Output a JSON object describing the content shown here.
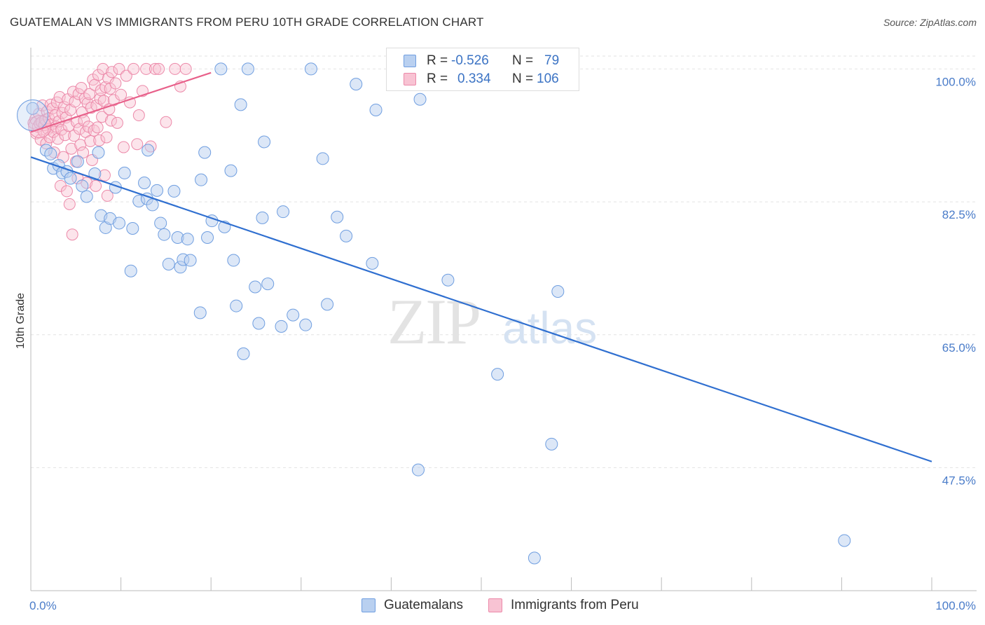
{
  "title": "GUATEMALAN VS IMMIGRANTS FROM PERU 10TH GRADE CORRELATION CHART",
  "source": "Source: ZipAtlas.com",
  "watermark": {
    "zip": "ZIP",
    "atlas": "atlas"
  },
  "colors": {
    "blue_fill": "#b9d0f0",
    "blue_stroke": "#6f9ee0",
    "blue_line": "#2f6fd0",
    "pink_fill": "#f8c3d3",
    "pink_stroke": "#ec89a9",
    "pink_line": "#e8608a",
    "tick_text": "#4a7cc9",
    "grid": "#e2e2e2"
  },
  "legend": {
    "rows": [
      {
        "r_label": "R =",
        "r_value": "-0.526",
        "n_label": "N =",
        "n_value": "79"
      },
      {
        "r_label": "R =",
        "r_value": "0.334",
        "n_label": "N =",
        "n_value": "106"
      }
    ]
  },
  "bottom_legend": {
    "series1": "Guatemalans",
    "series2": "Immigrants from Peru"
  },
  "chart_data": {
    "type": "scatter",
    "title": "GUATEMALAN VS IMMIGRANTS FROM PERU 10TH GRADE CORRELATION CHART",
    "xlabel": "",
    "ylabel": "10th Grade",
    "xlim": [
      0,
      100
    ],
    "ylim": [
      31.3,
      101.7
    ],
    "x_tick_labels": [
      "0.0%",
      "100.0%"
    ],
    "y_ticks": [
      47.5,
      65.0,
      82.5,
      100.0
    ],
    "y_tick_labels": [
      "47.5%",
      "65.0%",
      "82.5%",
      "100.0%"
    ],
    "grid": true,
    "legend_position": "top-center",
    "series": [
      {
        "name": "Guatemalans",
        "color": "#6f9ee0",
        "R": -0.526,
        "N": 79,
        "trend": {
          "x": [
            0,
            100
          ],
          "y": [
            88.4,
            48.3
          ]
        },
        "points": [
          [
            0.2,
            94.8
          ],
          [
            1.7,
            89.3
          ],
          [
            2.2,
            88.8
          ],
          [
            2.5,
            86.9
          ],
          [
            3.1,
            87.3
          ],
          [
            3.5,
            86.3
          ],
          [
            4.0,
            86.5
          ],
          [
            4.4,
            85.6
          ],
          [
            5.2,
            87.8
          ],
          [
            5.7,
            84.6
          ],
          [
            6.2,
            83.2
          ],
          [
            7.1,
            86.2
          ],
          [
            7.5,
            89.0
          ],
          [
            7.8,
            80.7
          ],
          [
            8.3,
            79.1
          ],
          [
            8.8,
            80.3
          ],
          [
            9.4,
            84.4
          ],
          [
            9.8,
            79.7
          ],
          [
            10.4,
            86.3
          ],
          [
            11.1,
            73.4
          ],
          [
            11.3,
            79.0
          ],
          [
            12.0,
            82.6
          ],
          [
            12.6,
            85.0
          ],
          [
            12.9,
            82.9
          ],
          [
            13.0,
            89.3
          ],
          [
            13.5,
            82.1
          ],
          [
            14.0,
            84.0
          ],
          [
            14.4,
            79.7
          ],
          [
            14.8,
            78.2
          ],
          [
            15.3,
            74.3
          ],
          [
            15.9,
            83.9
          ],
          [
            16.3,
            77.8
          ],
          [
            16.6,
            73.9
          ],
          [
            16.9,
            74.9
          ],
          [
            17.4,
            77.6
          ],
          [
            17.7,
            74.8
          ],
          [
            18.8,
            67.9
          ],
          [
            18.9,
            85.4
          ],
          [
            19.3,
            89.0
          ],
          [
            19.6,
            77.8
          ],
          [
            20.1,
            80.0
          ],
          [
            21.1,
            100.0
          ],
          [
            21.5,
            79.2
          ],
          [
            22.2,
            86.6
          ],
          [
            22.5,
            74.8
          ],
          [
            22.8,
            68.8
          ],
          [
            23.3,
            95.3
          ],
          [
            23.6,
            62.5
          ],
          [
            24.1,
            100.0
          ],
          [
            24.9,
            71.3
          ],
          [
            25.3,
            66.5
          ],
          [
            25.7,
            80.4
          ],
          [
            25.9,
            90.4
          ],
          [
            26.3,
            71.7
          ],
          [
            27.8,
            66.1
          ],
          [
            28.0,
            81.2
          ],
          [
            29.1,
            67.6
          ],
          [
            30.5,
            66.3
          ],
          [
            31.1,
            100.0
          ],
          [
            32.9,
            69.0
          ],
          [
            32.4,
            88.2
          ],
          [
            34.0,
            80.5
          ],
          [
            35.0,
            78.0
          ],
          [
            36.1,
            98.0
          ],
          [
            37.9,
            74.4
          ],
          [
            38.3,
            94.6
          ],
          [
            43.2,
            96.0
          ],
          [
            43.0,
            47.2
          ],
          [
            46.3,
            72.2
          ],
          [
            51.8,
            59.8
          ],
          [
            55.9,
            35.6
          ],
          [
            57.8,
            50.6
          ],
          [
            58.5,
            70.7
          ],
          [
            59.1,
            100.0
          ],
          [
            90.3,
            37.9
          ]
        ]
      },
      {
        "name": "Immigrants from Peru",
        "color": "#ec89a9",
        "R": 0.334,
        "N": 106,
        "trend": {
          "x": [
            0,
            20
          ],
          "y": [
            91.7,
            99.5
          ]
        },
        "points": [
          [
            0.3,
            92.9
          ],
          [
            0.5,
            93.4
          ],
          [
            0.6,
            91.5
          ],
          [
            0.8,
            92.4
          ],
          [
            0.9,
            94.1
          ],
          [
            1.0,
            92.8
          ],
          [
            1.1,
            90.7
          ],
          [
            1.2,
            93.0
          ],
          [
            1.3,
            95.2
          ],
          [
            1.4,
            91.8
          ],
          [
            1.5,
            92.6
          ],
          [
            1.6,
            93.3
          ],
          [
            1.7,
            90.2
          ],
          [
            1.8,
            94.4
          ],
          [
            1.9,
            92.1
          ],
          [
            2.0,
            93.5
          ],
          [
            2.1,
            91.0
          ],
          [
            2.2,
            95.3
          ],
          [
            2.3,
            92.7
          ],
          [
            2.4,
            94.8
          ],
          [
            2.5,
            91.7
          ],
          [
            2.6,
            89.0
          ],
          [
            2.7,
            93.9
          ],
          [
            2.8,
            92.4
          ],
          [
            2.9,
            95.6
          ],
          [
            3.0,
            90.8
          ],
          [
            3.1,
            93.1
          ],
          [
            3.2,
            96.3
          ],
          [
            3.3,
            84.6
          ],
          [
            3.4,
            92.0
          ],
          [
            3.5,
            94.2
          ],
          [
            3.6,
            88.4
          ],
          [
            3.7,
            95.0
          ],
          [
            3.8,
            91.3
          ],
          [
            3.9,
            93.6
          ],
          [
            4.0,
            83.9
          ],
          [
            4.1,
            96.0
          ],
          [
            4.2,
            92.5
          ],
          [
            4.3,
            82.2
          ],
          [
            4.4,
            94.6
          ],
          [
            4.5,
            89.5
          ],
          [
            4.6,
            78.2
          ],
          [
            4.7,
            97.0
          ],
          [
            4.8,
            91.2
          ],
          [
            4.9,
            95.7
          ],
          [
            5.0,
            87.8
          ],
          [
            5.1,
            93.0
          ],
          [
            5.2,
            85.6
          ],
          [
            5.3,
            96.7
          ],
          [
            5.4,
            92.1
          ],
          [
            5.5,
            90.0
          ],
          [
            5.6,
            97.5
          ],
          [
            5.7,
            94.3
          ],
          [
            5.8,
            89.0
          ],
          [
            5.9,
            93.2
          ],
          [
            6.0,
            96.1
          ],
          [
            6.1,
            91.7
          ],
          [
            6.2,
            85.0
          ],
          [
            6.3,
            95.5
          ],
          [
            6.4,
            92.4
          ],
          [
            6.5,
            96.7
          ],
          [
            6.6,
            90.5
          ],
          [
            6.7,
            94.9
          ],
          [
            6.8,
            88.0
          ],
          [
            6.9,
            98.6
          ],
          [
            7.0,
            91.9
          ],
          [
            7.1,
            97.9
          ],
          [
            7.2,
            84.6
          ],
          [
            7.3,
            95.2
          ],
          [
            7.4,
            92.3
          ],
          [
            7.5,
            99.2
          ],
          [
            7.6,
            90.6
          ],
          [
            7.7,
            96.1
          ],
          [
            7.8,
            97.2
          ],
          [
            7.9,
            93.7
          ],
          [
            8.0,
            100.0
          ],
          [
            8.1,
            95.8
          ],
          [
            8.2,
            86.0
          ],
          [
            8.3,
            97.6
          ],
          [
            8.4,
            91.0
          ],
          [
            8.5,
            83.3
          ],
          [
            8.6,
            98.8
          ],
          [
            8.7,
            94.7
          ],
          [
            8.8,
            97.4
          ],
          [
            8.9,
            93.2
          ],
          [
            9.0,
            99.6
          ],
          [
            9.2,
            95.9
          ],
          [
            9.4,
            98.1
          ],
          [
            9.6,
            92.9
          ],
          [
            9.8,
            100.0
          ],
          [
            10.0,
            96.6
          ],
          [
            10.3,
            89.7
          ],
          [
            10.6,
            99.1
          ],
          [
            11.0,
            95.6
          ],
          [
            11.4,
            100.0
          ],
          [
            12.0,
            93.9
          ],
          [
            12.4,
            97.1
          ],
          [
            12.8,
            100.0
          ],
          [
            13.3,
            89.8
          ],
          [
            13.8,
            100.0
          ],
          [
            14.2,
            100.0
          ],
          [
            15.0,
            93.0
          ],
          [
            16.0,
            100.0
          ],
          [
            16.6,
            97.7
          ],
          [
            17.2,
            100.0
          ],
          [
            11.8,
            90.1
          ]
        ]
      }
    ]
  }
}
